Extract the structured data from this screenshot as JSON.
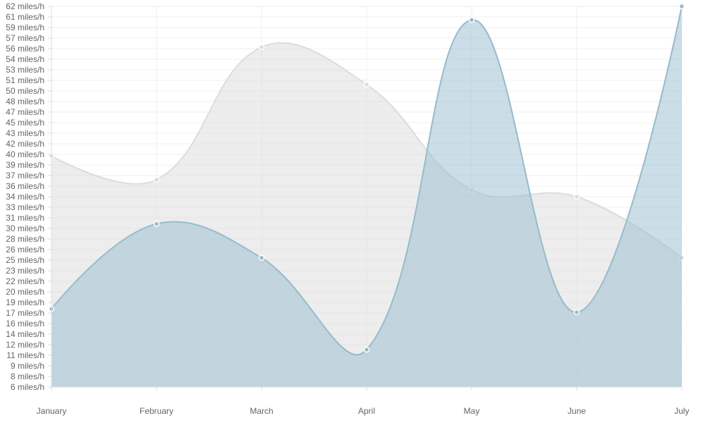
{
  "chart_data": {
    "type": "area",
    "categories": [
      "January",
      "February",
      "March",
      "April",
      "May",
      "June",
      "July"
    ],
    "ylim": [
      6,
      62
    ],
    "y_ticks": [
      "6 miles/h",
      "8 miles/h",
      "9 miles/h",
      "11 miles/h",
      "12 miles/h",
      "14 miles/h",
      "16 miles/h",
      "17 miles/h",
      "19 miles/h",
      "20 miles/h",
      "22 miles/h",
      "23 miles/h",
      "25 miles/h",
      "26 miles/h",
      "28 miles/h",
      "30 miles/h",
      "31 miles/h",
      "33 miles/h",
      "34 miles/h",
      "36 miles/h",
      "37 miles/h",
      "39 miles/h",
      "40 miles/h",
      "42 miles/h",
      "43 miles/h",
      "45 miles/h",
      "47 miles/h",
      "48 miles/h",
      "50 miles/h",
      "51 miles/h",
      "53 miles/h",
      "54 miles/h",
      "56 miles/h",
      "57 miles/h",
      "59 miles/h",
      "61 miles/h",
      "62 miles/h"
    ],
    "grid": true,
    "series": [
      {
        "values": [
          40,
          36.5,
          56,
          50.5,
          35,
          34,
          25
        ],
        "line_color": "#dcdcdc",
        "fill_color": "rgba(220,220,220,0.5)",
        "point_color": "#dcdcdc"
      },
      {
        "values": [
          17.5,
          30,
          25,
          11.5,
          60,
          17,
          62
        ],
        "line_color": "#97bbcd",
        "fill_color": "rgba(151,187,205,0.5)",
        "point_color": "#97bbcd"
      }
    ]
  }
}
